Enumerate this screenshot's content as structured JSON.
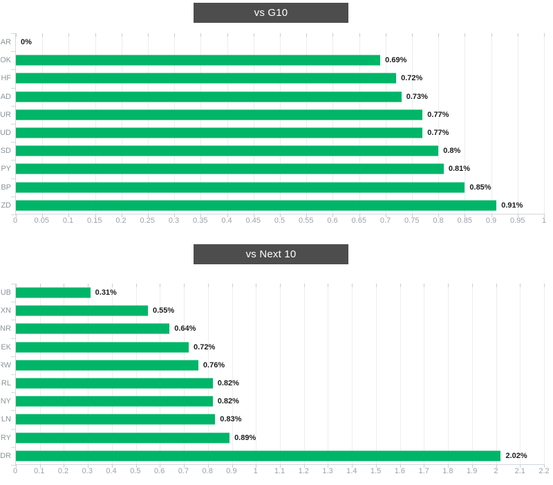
{
  "colors": {
    "bar": "#00b567",
    "title_bg": "#4d4d4d",
    "title_text": "#ffffff",
    "value_label": "#1b1c1e",
    "category_label": "#8d939b",
    "axis_label": "#9ba1ab",
    "gridline": "#ecedf0",
    "axis_line": "#d2d6dc",
    "tick": "#c7ccd3"
  },
  "chart_data": [
    {
      "type": "bar",
      "orientation": "horizontal",
      "title": "vs G10",
      "categories": [
        "ZAR",
        "NOK",
        "CHF",
        "CAD",
        "EUR",
        "AUD",
        "USD",
        "JPY",
        "GBP",
        "NZD"
      ],
      "values": [
        0,
        0.69,
        0.72,
        0.73,
        0.77,
        0.77,
        0.8,
        0.81,
        0.85,
        0.91
      ],
      "value_labels": [
        "0%",
        "0.69%",
        "0.72%",
        "0.73%",
        "0.77%",
        "0.77%",
        "0.8%",
        "0.81%",
        "0.85%",
        "0.91%"
      ],
      "xlim": [
        0,
        1
      ],
      "x_ticks": [
        "0",
        "0.05",
        "0.1",
        "0.15",
        "0.2",
        "0.25",
        "0.3",
        "0.35",
        "0.4",
        "0.45",
        "0.5",
        "0.55",
        "0.6",
        "0.65",
        "0.7",
        "0.75",
        "0.8",
        "0.85",
        "0.9",
        "0.95",
        "1"
      ],
      "grid": true,
      "legend": "none",
      "value_label_position": "end-of-bar"
    },
    {
      "type": "bar",
      "orientation": "horizontal",
      "title": "vs Next 10",
      "categories": [
        "RUB",
        "MXN",
        "INR",
        "SEK",
        "KRW",
        "BRL",
        "CNY",
        "PLN",
        "TRY",
        "IDR"
      ],
      "values": [
        0.31,
        0.55,
        0.64,
        0.72,
        0.76,
        0.82,
        0.82,
        0.83,
        0.89,
        2.02
      ],
      "value_labels": [
        "0.31%",
        "0.55%",
        "0.64%",
        "0.72%",
        "0.76%",
        "0.82%",
        "0.82%",
        "0.83%",
        "0.89%",
        "2.02%"
      ],
      "xlim": [
        0,
        2.2
      ],
      "x_ticks": [
        "0",
        "0.1",
        "0.2",
        "0.3",
        "0.4",
        "0.5",
        "0.6",
        "0.7",
        "0.8",
        "0.9",
        "1",
        "1.1",
        "1.2",
        "1.3",
        "1.4",
        "1.5",
        "1.6",
        "1.7",
        "1.8",
        "1.9",
        "2",
        "2.1",
        "2.2"
      ],
      "grid": true,
      "legend": "none",
      "value_label_position": "end-of-bar"
    }
  ]
}
